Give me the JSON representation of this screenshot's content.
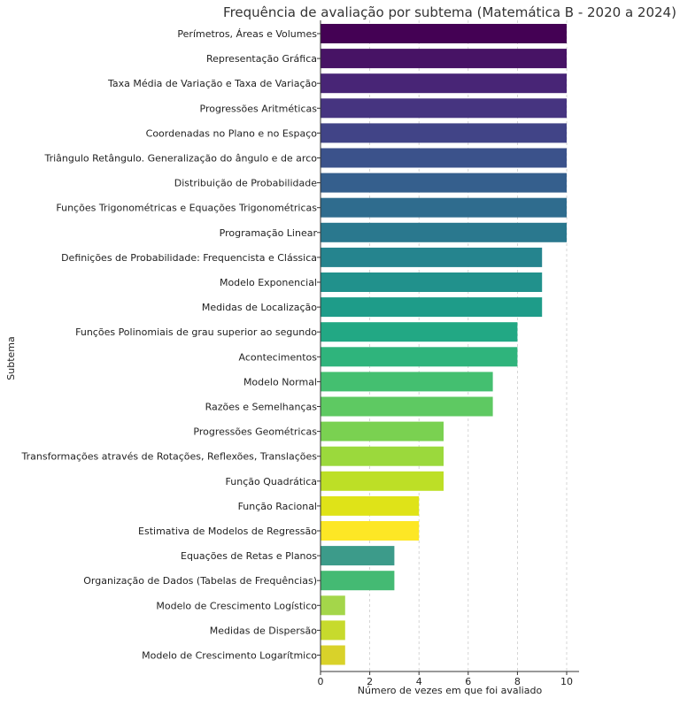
{
  "chart_data": {
    "type": "bar",
    "orientation": "horizontal",
    "title": "Frequência de avaliação por subtema (Matemática B - 2020 a 2024)",
    "xlabel": "Número de vezes em que foi avaliado",
    "ylabel": "Subtema",
    "xlim": [
      0,
      10.5
    ],
    "xticks": [
      "0",
      "2",
      "4",
      "6",
      "8",
      "10"
    ],
    "grid": "vertical dashed",
    "colormap": "viridis",
    "categories": [
      "Perímetros, Áreas e Volumes",
      "Representação Gráfica",
      "Taxa Média de Variação e Taxa de Variação",
      "Progressões Aritméticas",
      "Coordenadas no Plano e no Espaço",
      "Triângulo Retângulo. Generalização do ângulo e de arco",
      "Distribuição de Probabilidade",
      "Funções Trigonométricas e Equações Trigonométricas",
      "Programação Linear",
      "Definições de Probabilidade: Frequencista e Clássica",
      "Modelo Exponencial",
      "Medidas de Localização",
      "Funções Polinomiais de grau superior ao segundo",
      "Acontecimentos",
      "Modelo Normal",
      "Razões e Semelhanças",
      "Progressões Geométricas",
      "Transformações através de Rotações, Reflexões, Translações",
      "Função Quadrática",
      "Função Racional",
      "Estimativa de Modelos de Regressão",
      "Equações de Retas e Planos",
      "Organização de Dados (Tabelas de Frequências)",
      "Modelo de Crescimento Logístico",
      "Medidas de Dispersão",
      "Modelo de Crescimento Logarítmico"
    ],
    "values": [
      10,
      10,
      10,
      10,
      10,
      10,
      10,
      10,
      10,
      9,
      9,
      9,
      8,
      8,
      7,
      7,
      5,
      5,
      5,
      4,
      4,
      3,
      3,
      1,
      1,
      1
    ],
    "colors": [
      "#440154",
      "#471365",
      "#482576",
      "#463480",
      "#414487",
      "#3b528b",
      "#355f8d",
      "#2f6c8e",
      "#2a788e",
      "#25848e",
      "#21918c",
      "#1e9c89",
      "#22a884",
      "#2fb47c",
      "#44bf70",
      "#5ec962",
      "#7ad151",
      "#9bd93c",
      "#bddf26",
      "#dfe318",
      "#fde725",
      "#3c9b8a",
      "#44ba73",
      "#a4d64a",
      "#c7da2d",
      "#d9d22a"
    ]
  }
}
